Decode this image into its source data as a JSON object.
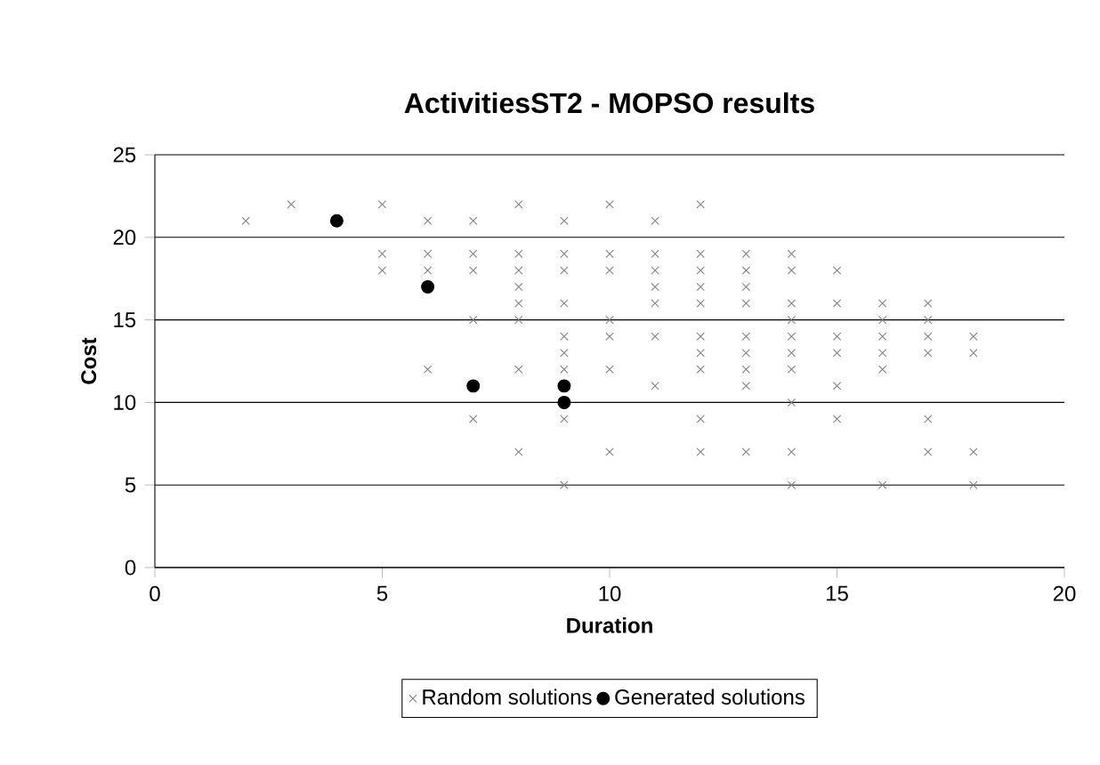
{
  "chart_data": {
    "type": "scatter",
    "title": "ActivitiesST2 - MOPSO results",
    "xlabel": "Duration",
    "ylabel": "Cost",
    "xlim": [
      0,
      20
    ],
    "ylim": [
      0,
      25
    ],
    "xticks": [
      0,
      5,
      10,
      15,
      20
    ],
    "yticks": [
      0,
      5,
      10,
      15,
      20,
      25
    ],
    "grid": "y",
    "legend": "bottom",
    "series": [
      {
        "name": "Random solutions",
        "color": "#808080",
        "marker": "cross",
        "x": [
          2,
          3,
          5,
          5,
          5,
          6,
          6,
          6,
          6,
          7,
          7,
          7,
          7,
          7,
          8,
          8,
          8,
          8,
          8,
          8,
          8,
          8,
          9,
          9,
          9,
          9,
          9,
          9,
          9,
          9,
          9,
          10,
          10,
          10,
          10,
          10,
          10,
          10,
          11,
          11,
          11,
          11,
          11,
          11,
          11,
          12,
          12,
          12,
          12,
          12,
          12,
          12,
          12,
          12,
          12,
          13,
          13,
          13,
          13,
          13,
          13,
          13,
          13,
          13,
          14,
          14,
          14,
          14,
          14,
          14,
          14,
          14,
          14,
          14,
          15,
          15,
          15,
          15,
          15,
          15,
          16,
          16,
          16,
          16,
          16,
          16,
          17,
          17,
          17,
          17,
          17,
          17,
          18,
          18,
          18,
          18
        ],
        "values": [
          21,
          22,
          22,
          19,
          18,
          21,
          19,
          18,
          12,
          21,
          19,
          18,
          15,
          9,
          22,
          19,
          18,
          17,
          16,
          15,
          12,
          7,
          21,
          19,
          18,
          16,
          14,
          13,
          12,
          9,
          5,
          22,
          19,
          18,
          15,
          14,
          12,
          7,
          21,
          19,
          18,
          17,
          16,
          14,
          11,
          22,
          19,
          18,
          17,
          16,
          14,
          13,
          12,
          9,
          7,
          19,
          18,
          17,
          16,
          14,
          13,
          12,
          11,
          7,
          19,
          18,
          16,
          15,
          14,
          13,
          12,
          10,
          7,
          5,
          18,
          16,
          14,
          13,
          11,
          9,
          16,
          15,
          14,
          13,
          12,
          5,
          16,
          15,
          14,
          13,
          9,
          7,
          14,
          13,
          7,
          5
        ]
      },
      {
        "name": "Generated solutions",
        "color": "#000000",
        "marker": "circle",
        "x": [
          4,
          6,
          7,
          9,
          9
        ],
        "values": [
          21,
          17,
          11,
          11,
          10
        ]
      }
    ]
  }
}
